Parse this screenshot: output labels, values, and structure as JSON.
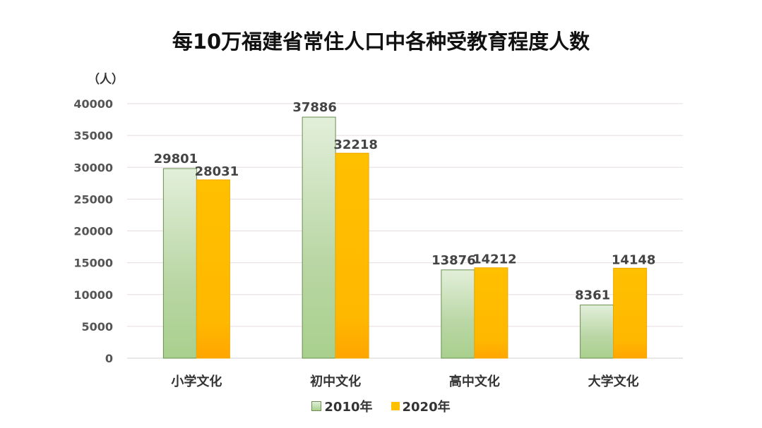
{
  "chart_data": {
    "type": "bar",
    "title": "每10万福建省常住人口中各种受教育程度人数",
    "ylabel": "（人）",
    "xlabel": "",
    "categories": [
      "小学文化",
      "初中文化",
      "高中文化",
      "大学文化"
    ],
    "series": [
      {
        "name": "2010年",
        "values": [
          29801,
          37886,
          13876,
          8361
        ],
        "color": "#a9d08e"
      },
      {
        "name": "2020年",
        "values": [
          28031,
          32218,
          14212,
          14148
        ],
        "color": "#ffc000"
      }
    ],
    "ylim": [
      0,
      40000
    ],
    "yticks": [
      0,
      5000,
      10000,
      15000,
      20000,
      25000,
      30000,
      35000,
      40000
    ],
    "grid": true,
    "data_labels": true,
    "legend": "bottom"
  }
}
